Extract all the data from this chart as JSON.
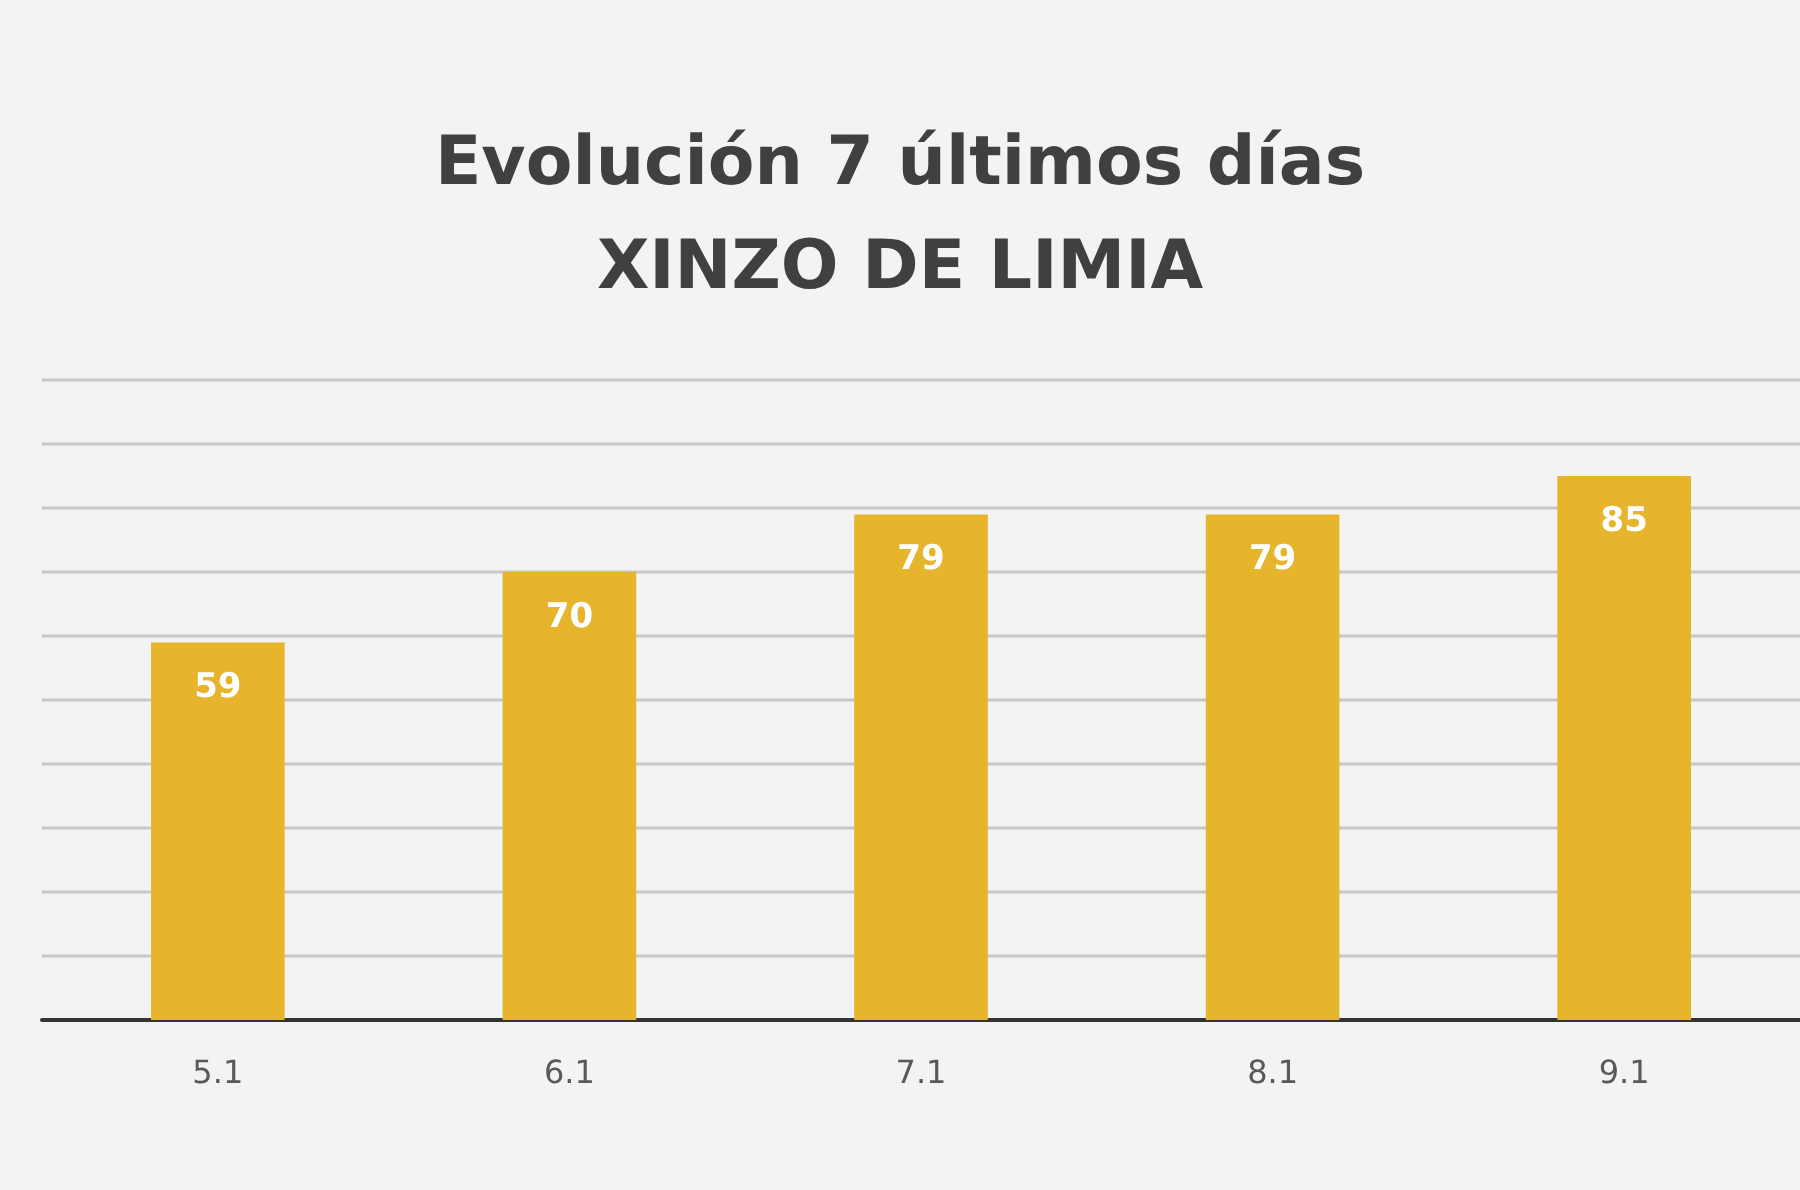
{
  "chart_data": {
    "type": "bar",
    "title": "Evolución 7 últimos días\nXINZO DE LIMIA",
    "categories": [
      "5.1",
      "6.1",
      "7.1",
      "8.1",
      "9.1"
    ],
    "values": [
      59,
      70,
      79,
      79,
      85
    ],
    "color": "#e6b52b",
    "data_labels": true,
    "ylim": [
      0,
      100
    ],
    "yticks": [
      {
        "value": 0,
        "label": null
      },
      {
        "value": 10,
        "label": null
      },
      {
        "value": 20,
        "label": null
      },
      {
        "value": 30,
        "label": null
      },
      {
        "value": 40,
        "label": null
      },
      {
        "value": 50,
        "label": null
      },
      {
        "value": 60,
        "label": null
      },
      {
        "value": 70,
        "label": null
      },
      {
        "value": 80,
        "label": null
      },
      {
        "value": 90,
        "label": null
      },
      {
        "value": 100,
        "label": null
      }
    ],
    "grid": "y",
    "tick_labels": "x"
  }
}
